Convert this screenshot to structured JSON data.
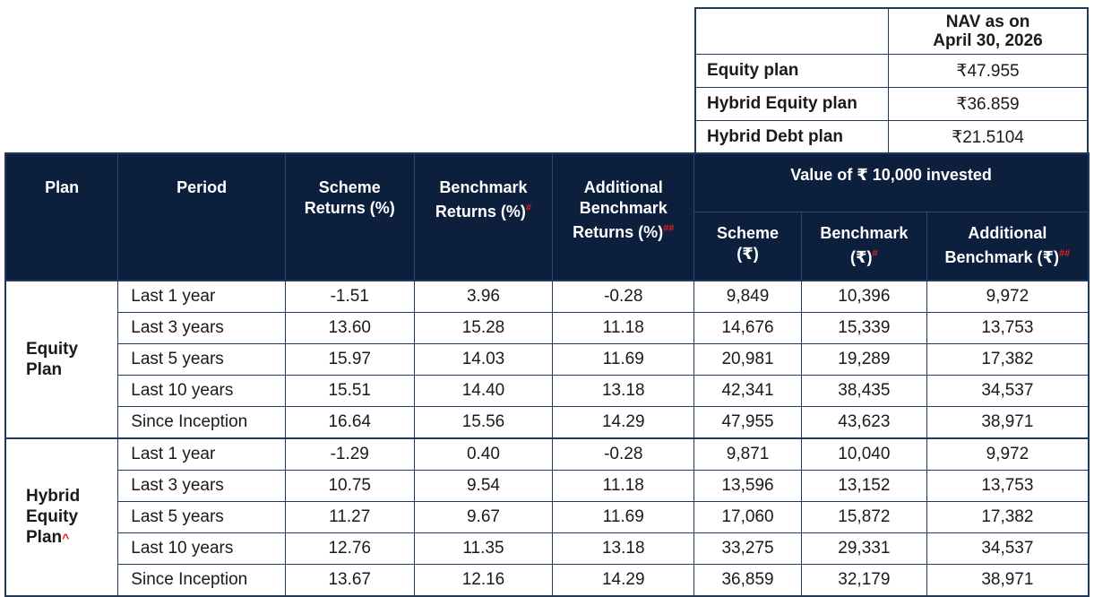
{
  "nav_table": {
    "header": "NAV as on April 30, 2026",
    "header_line1": "NAV as on",
    "header_line2": "April 30, 2026",
    "rows": [
      {
        "plan": "Equity plan",
        "nav": "₹47.955"
      },
      {
        "plan": "Hybrid Equity plan",
        "nav": "₹36.859"
      },
      {
        "plan": "Hybrid Debt plan",
        "nav": "₹21.5104"
      }
    ]
  },
  "returns_table": {
    "headers": {
      "plan": "Plan",
      "period": "Period",
      "scheme_returns_1": "Scheme",
      "scheme_returns_2": "Returns (%)",
      "benchmark_returns_1": "Benchmark",
      "benchmark_returns_2": "Returns (%)",
      "benchmark_returns_mark": "#",
      "additional_benchmark_1": "Additional",
      "additional_benchmark_2": "Benchmark",
      "additional_benchmark_3": "Returns (%)",
      "additional_benchmark_mark": "##",
      "value_group": "Value of ₹ 10,000 invested",
      "value_scheme_1": "Scheme",
      "value_scheme_2": "(₹)",
      "value_benchmark_1": "Benchmark",
      "value_benchmark_2": "(₹)",
      "value_benchmark_mark": "#",
      "value_additional_1": "Additional",
      "value_additional_2": "Benchmark (₹)",
      "value_additional_mark": "##"
    },
    "groups": [
      {
        "plan_line1": "Equity",
        "plan_line2": "Plan",
        "plan_line3": "",
        "plan_mark": "",
        "rows": [
          {
            "period": "Last 1 year",
            "scheme": "-1.51",
            "benchmark": "3.96",
            "additional": "-0.28",
            "v_scheme": "9,849",
            "v_benchmark": "10,396",
            "v_additional": "9,972"
          },
          {
            "period": "Last 3 years",
            "scheme": "13.60",
            "benchmark": "15.28",
            "additional": "11.18",
            "v_scheme": "14,676",
            "v_benchmark": "15,339",
            "v_additional": "13,753"
          },
          {
            "period": "Last 5 years",
            "scheme": "15.97",
            "benchmark": "14.03",
            "additional": "11.69",
            "v_scheme": "20,981",
            "v_benchmark": "19,289",
            "v_additional": "17,382"
          },
          {
            "period": "Last 10 years",
            "scheme": "15.51",
            "benchmark": "14.40",
            "additional": "13.18",
            "v_scheme": "42,341",
            "v_benchmark": "38,435",
            "v_additional": "34,537"
          },
          {
            "period": "Since Inception",
            "scheme": "16.64",
            "benchmark": "15.56",
            "additional": "14.29",
            "v_scheme": "47,955",
            "v_benchmark": "43,623",
            "v_additional": "38,971"
          }
        ]
      },
      {
        "plan_line1": "Hybrid",
        "plan_line2": "Equity",
        "plan_line3": "Plan",
        "plan_mark": "^",
        "rows": [
          {
            "period": "Last 1 year",
            "scheme": "-1.29",
            "benchmark": "0.40",
            "additional": "-0.28",
            "v_scheme": "9,871",
            "v_benchmark": "10,040",
            "v_additional": "9,972"
          },
          {
            "period": "Last 3 years",
            "scheme": "10.75",
            "benchmark": "9.54",
            "additional": "11.18",
            "v_scheme": "13,596",
            "v_benchmark": "13,152",
            "v_additional": "13,753"
          },
          {
            "period": "Last 5 years",
            "scheme": "11.27",
            "benchmark": "9.67",
            "additional": "11.69",
            "v_scheme": "17,060",
            "v_benchmark": "15,872",
            "v_additional": "17,382"
          },
          {
            "period": "Last 10 years",
            "scheme": "12.76",
            "benchmark": "11.35",
            "additional": "13.18",
            "v_scheme": "33,275",
            "v_benchmark": "29,331",
            "v_additional": "34,537"
          },
          {
            "period": "Since Inception",
            "scheme": "13.67",
            "benchmark": "12.16",
            "additional": "14.29",
            "v_scheme": "36,859",
            "v_benchmark": "32,179",
            "v_additional": "38,971"
          }
        ]
      }
    ]
  },
  "colors": {
    "header_bg": "#0c1f3d",
    "border": "#1f3a5c",
    "footnote_mark": "#e02020"
  }
}
